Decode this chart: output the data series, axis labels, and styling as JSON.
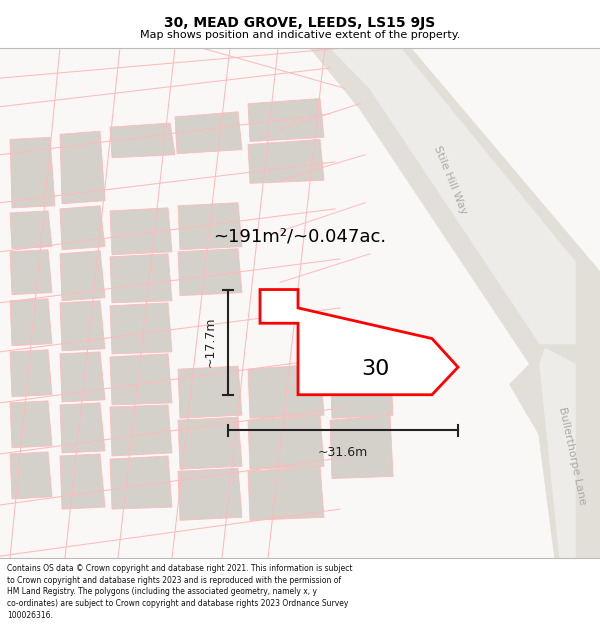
{
  "title": "30, MEAD GROVE, LEEDS, LS15 9JS",
  "subtitle": "Map shows position and indicative extent of the property.",
  "footer_text": "Contains OS data © Crown copyright and database right 2021. This information is subject\nto Crown copyright and database rights 2023 and is reproduced with the permission of\nHM Land Registry. The polygons (including the associated geometry, namely x, y\nco-ordinates) are subject to Crown copyright and database rights 2023 Ordnance Survey\n100026316.",
  "map_bg": "#ffffff",
  "road_fill": "#e8e6e2",
  "road_edge": "#c8c4be",
  "building_fill": "#d4d0ca",
  "building_edge": "#ffbbbb",
  "street_line": "#ffbbbb",
  "plot_edge": "#ff0000",
  "plot_fill": "#ffffff",
  "dim_color": "#222222",
  "label_color": "#aaaaaa",
  "area_text": "~191m²/~0.047ac.",
  "dim_width": "~31.6m",
  "dim_height": "~17.7m",
  "property_number": "30",
  "road_label_1": "Stile Hill Way",
  "road_label_2": "Bullerthorpe Lane",
  "title_fontsize": 10,
  "subtitle_fontsize": 8,
  "footer_fontsize": 5.5,
  "area_fontsize": 13,
  "dim_fontsize": 9,
  "propnum_fontsize": 16,
  "roadlabel_fontsize": 8
}
